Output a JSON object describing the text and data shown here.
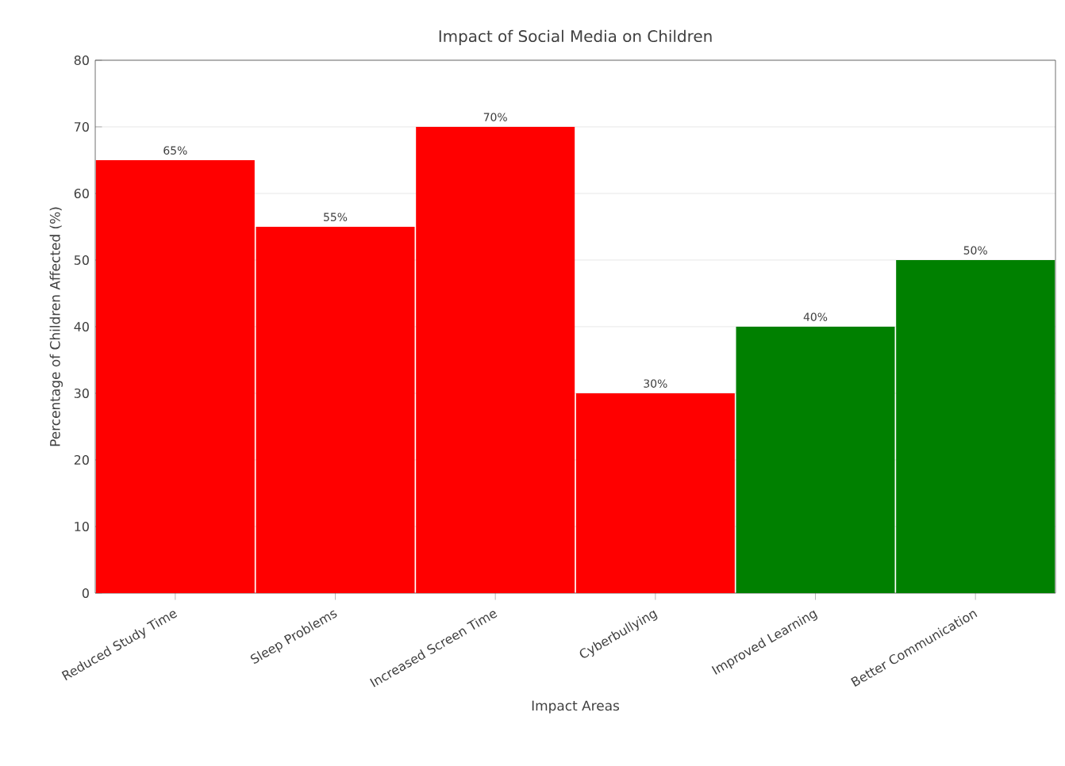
{
  "chart_data": {
    "type": "bar",
    "title": "Impact of Social Media on Children",
    "xlabel": "Impact Areas",
    "ylabel": "Percentage of Children Affected (%)",
    "categories": [
      "Reduced Study Time",
      "Sleep Problems",
      "Increased Screen Time",
      "Cyberbullying",
      "Improved Learning",
      "Better Communication"
    ],
    "values": [
      65,
      55,
      70,
      30,
      40,
      50
    ],
    "colors": [
      "#ff0000",
      "#ff0000",
      "#ff0000",
      "#ff0000",
      "#008000",
      "#008000"
    ],
    "value_labels": [
      "65%",
      "55%",
      "70%",
      "30%",
      "40%",
      "50%"
    ],
    "ylim": [
      0,
      80
    ],
    "yticks": [
      0,
      10,
      20,
      30,
      40,
      50,
      60,
      70,
      80
    ],
    "grid": "y"
  }
}
